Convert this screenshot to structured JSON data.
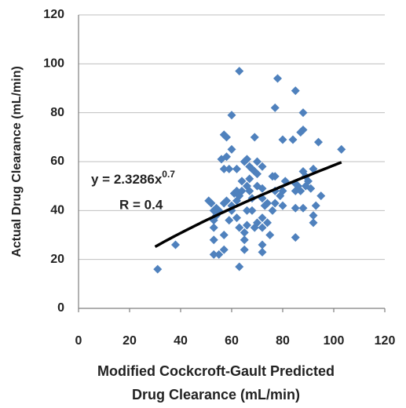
{
  "chart_data": {
    "type": "scatter",
    "xlabel": [
      "Modified Cockcroft-Gault Predicted",
      "Drug Clearance (mL/min)"
    ],
    "ylabel": "Actual Drug Clearance (mL/min)",
    "annotations": [
      "y = 2.3286x",
      "0.7",
      "R = 0.4"
    ],
    "xlim": [
      0,
      120
    ],
    "xticks": [
      0,
      20,
      40,
      60,
      80,
      100,
      120
    ],
    "ylim": [
      0,
      120
    ],
    "yticks": [
      0,
      20,
      40,
      60,
      80,
      100,
      120
    ],
    "grid": true,
    "series": [
      {
        "color": "#4f81bd",
        "x": [
          31,
          38,
          63,
          78,
          85,
          77,
          88,
          60,
          57,
          58,
          69,
          88,
          87,
          80,
          84,
          94,
          103,
          60,
          56,
          58,
          59,
          57,
          62,
          65,
          66,
          67,
          68,
          69,
          70,
          70,
          72,
          64,
          66,
          67,
          67,
          76,
          77,
          81,
          85,
          86,
          88,
          89,
          92,
          90,
          91,
          87,
          95,
          93,
          92,
          92,
          88,
          85,
          80,
          79,
          77,
          74,
          73,
          72,
          72,
          70,
          72,
          72,
          72,
          72,
          70,
          69,
          66,
          65,
          65,
          65,
          63,
          63,
          62,
          62,
          61,
          62,
          60,
          59,
          57,
          57,
          55,
          53,
          53,
          53,
          53,
          54,
          54,
          53,
          52,
          51,
          55,
          57,
          58,
          60,
          85,
          75,
          74,
          76,
          68,
          66,
          68,
          63,
          64,
          77,
          80,
          85,
          89
        ],
        "values": [
          16,
          26,
          97,
          94,
          89,
          82,
          80,
          79,
          71,
          70,
          70,
          73,
          72,
          69,
          69,
          68,
          65,
          65,
          61,
          62,
          57,
          57,
          57,
          60,
          61,
          58,
          57,
          56,
          55,
          60,
          58,
          52,
          50,
          48,
          53,
          54,
          54,
          52,
          51,
          50,
          56,
          54,
          57,
          52,
          49,
          48,
          46,
          42,
          38,
          35,
          41,
          41,
          42,
          46,
          43,
          43,
          42,
          45,
          49,
          50,
          37,
          33,
          26,
          23,
          35,
          33,
          34,
          31,
          28,
          24,
          33,
          17,
          37,
          44,
          47,
          48,
          42,
          36,
          30,
          24,
          22,
          22,
          28,
          33,
          36,
          38,
          41,
          40,
          43,
          44,
          40,
          43,
          44,
          40,
          29,
          30,
          35,
          40,
          40,
          40,
          45,
          46,
          48,
          48,
          48,
          48,
          50
        ]
      }
    ],
    "trendline": {
      "color": "#000000",
      "coefficient": 2.3286,
      "exponent": 0.7,
      "xrange": [
        30,
        103
      ]
    }
  }
}
